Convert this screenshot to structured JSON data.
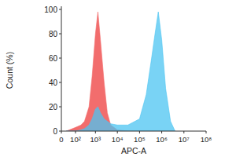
{
  "chart_data": {
    "type": "histogram_overlay",
    "x_label": "APC-A",
    "y_label": "Count (%)",
    "log": "x",
    "x": [
      20,
      100,
      200,
      300,
      500,
      700,
      1000,
      1300,
      1700,
      2500,
      3500,
      5000,
      10000,
      30000,
      100000,
      200000,
      350000,
      500000,
      700000,
      1000000,
      1500000,
      2500000,
      4000000
    ],
    "series": [
      {
        "color": "#f26d6d",
        "values": [
          0,
          3,
          5,
          8,
          20,
          45,
          80,
          98,
          75,
          40,
          15,
          5,
          1,
          0,
          0,
          0,
          0,
          0,
          0,
          0,
          0,
          0,
          0
        ]
      },
      {
        "color": "#4cc4f2",
        "values": [
          0,
          0,
          1,
          2,
          5,
          10,
          18,
          20,
          15,
          10,
          8,
          6,
          5,
          5,
          10,
          30,
          60,
          80,
          98,
          75,
          35,
          8,
          0
        ]
      }
    ],
    "xlim": [
      0,
      100000000
    ],
    "xticks": [
      0,
      {
        "value": 100,
        "label": "10²"
      },
      {
        "value": 1000,
        "label": "10³"
      },
      {
        "value": 10000,
        "label": "10⁴"
      },
      {
        "value": 100000,
        "label": "10⁵"
      },
      {
        "value": 1000000,
        "label": "10⁶"
      },
      {
        "value": 10000000,
        "label": "10⁷"
      },
      {
        "value": 100000000,
        "label": "10⁸"
      }
    ],
    "ylim": [
      0,
      100
    ],
    "yticks": [
      0,
      20,
      40,
      60,
      80,
      100
    ]
  }
}
